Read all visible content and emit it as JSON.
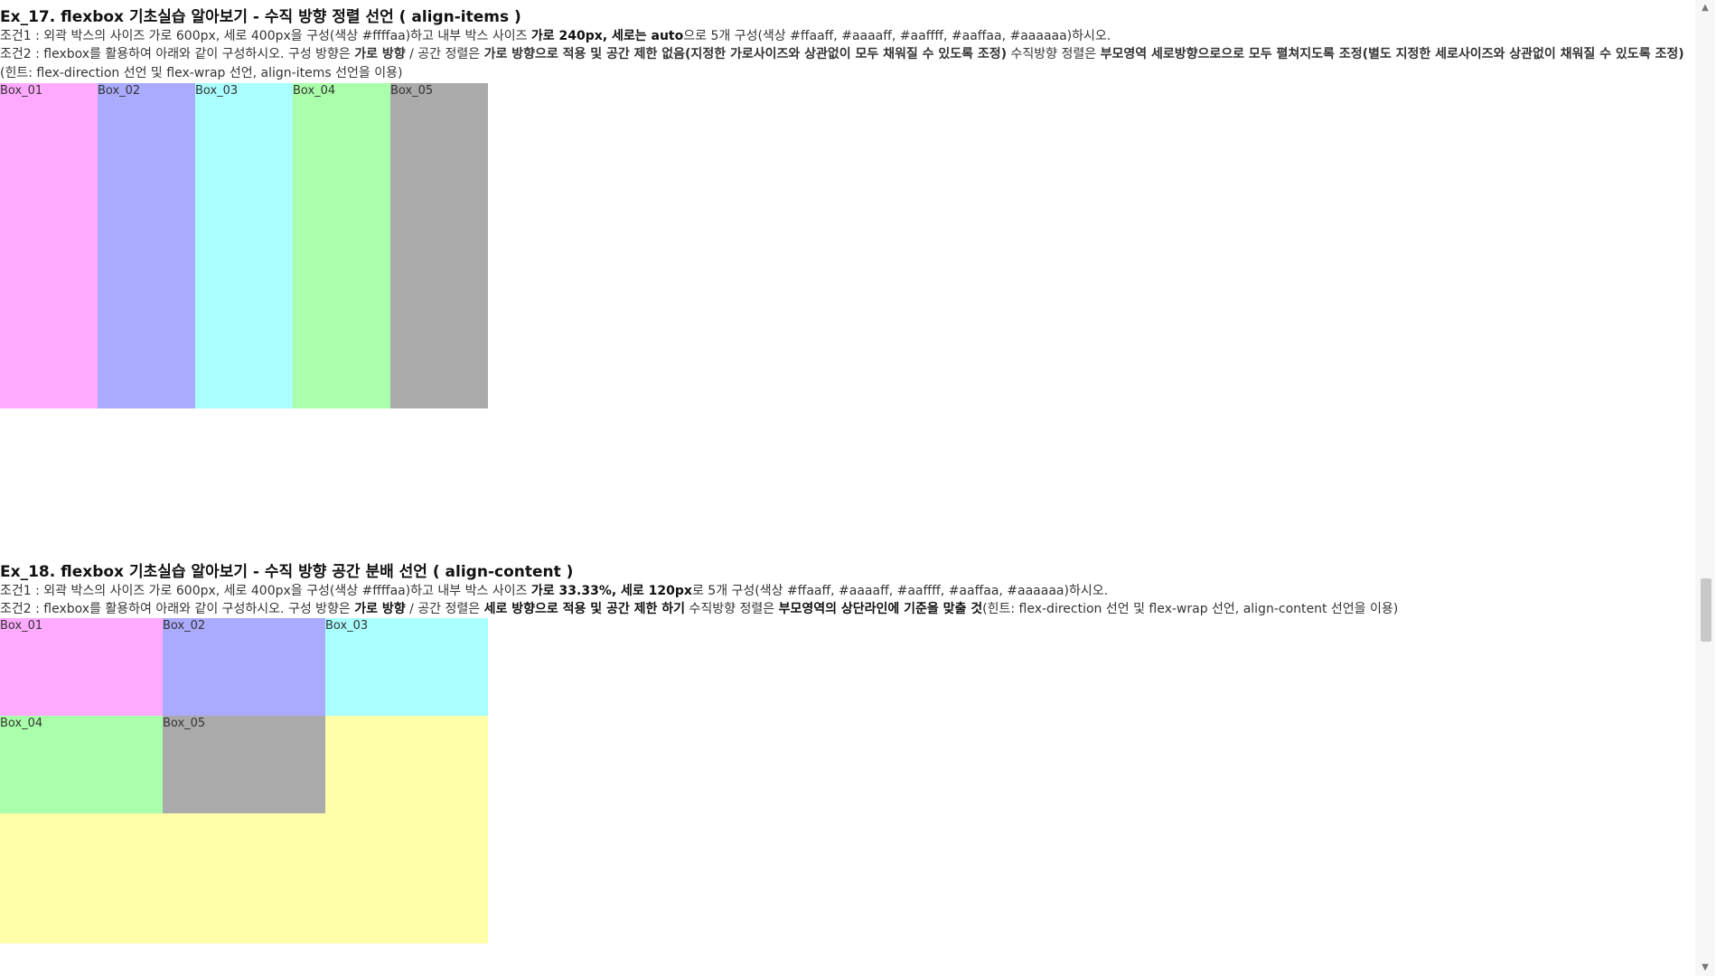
{
  "ex17": {
    "title": "Ex_17. flexbox 기초실습 알아보기 - 수직 방향 정렬 선언 ( align-items )",
    "cond1": {
      "prefix": "조건1 : 외곽 박스의 사이즈 가로 600px, 세로 400px을 구성(색상 #ffffaa)하고 내부 박스 사이즈 ",
      "bold": "가로 240px, 세로는 auto",
      "suffix": "으로 5개 구성(색상 #ffaaff, #aaaaff, #aaffff, #aaffaa, #aaaaaa)하시오."
    },
    "cond2": {
      "part1": "조건2 : flexbox를 활용하여 아래와 같이 구성하시오. 구성 방향은 ",
      "bold1": "가로 방향",
      "part2": " / 공간 정렬은 ",
      "bold2": "가로 방향으로 적용 및 공간 제한 없음(지정한 가로사이즈와 상관없이 모두 채워질 수 있도록 조정)",
      "part3": " 수직방향 정렬은 ",
      "bold3": "부모영역 세로방향으로으로 모두 펼쳐지도록 조정(별도 지정한 세로사이즈와 상관없이 채워질 수 있도록 조정)",
      "part4": "(힌트: flex-direction 선언 및 flex-wrap 선언, align-items 선언을 이용)"
    },
    "boxes": [
      {
        "label": "Box_01",
        "color": "#ffaaff"
      },
      {
        "label": "Box_02",
        "color": "#aaaaff"
      },
      {
        "label": "Box_03",
        "color": "#aaffff"
      },
      {
        "label": "Box_04",
        "color": "#aaffaa"
      },
      {
        "label": "Box_05",
        "color": "#aaaaaa"
      }
    ]
  },
  "ex18": {
    "title": "Ex_18. flexbox 기초실습 알아보기 - 수직 방향 공간 분배 선언 ( align-content )",
    "cond1": {
      "prefix": "조건1 : 외곽 박스의 사이즈 가로 600px, 세로 400px을 구성(색상 #ffffaa)하고 내부 박스 사이즈 ",
      "bold": "가로 33.33%, 세로 120px",
      "suffix": "로 5개 구성(색상 #ffaaff, #aaaaff, #aaffff, #aaffaa, #aaaaaa)하시오."
    },
    "cond2": {
      "part1": "조건2 : flexbox를 활용하여 아래와 같이 구성하시오. 구성 방향은 ",
      "bold1": "가로 방향",
      "part2": " / 공간 정렬은 ",
      "bold2": "세로 방향으로 적용 및 공간 제한 하기",
      "part3": " 수직방향 정렬은 ",
      "bold3": "부모영역의 상단라인에 기준을 맞출 것",
      "part4": "(힌트: flex-direction 선언 및 flex-wrap 선언, align-content 선언을 이용)"
    },
    "outer_color": "#ffffaa",
    "boxes": [
      {
        "label": "Box_01",
        "color": "#ffaaff"
      },
      {
        "label": "Box_02",
        "color": "#aaaaff"
      },
      {
        "label": "Box_03",
        "color": "#aaffff"
      },
      {
        "label": "Box_04",
        "color": "#aaffaa"
      },
      {
        "label": "Box_05",
        "color": "#aaaaaa"
      }
    ]
  },
  "scrollbar": {
    "up_icon": "▲",
    "down_icon": "▼"
  }
}
